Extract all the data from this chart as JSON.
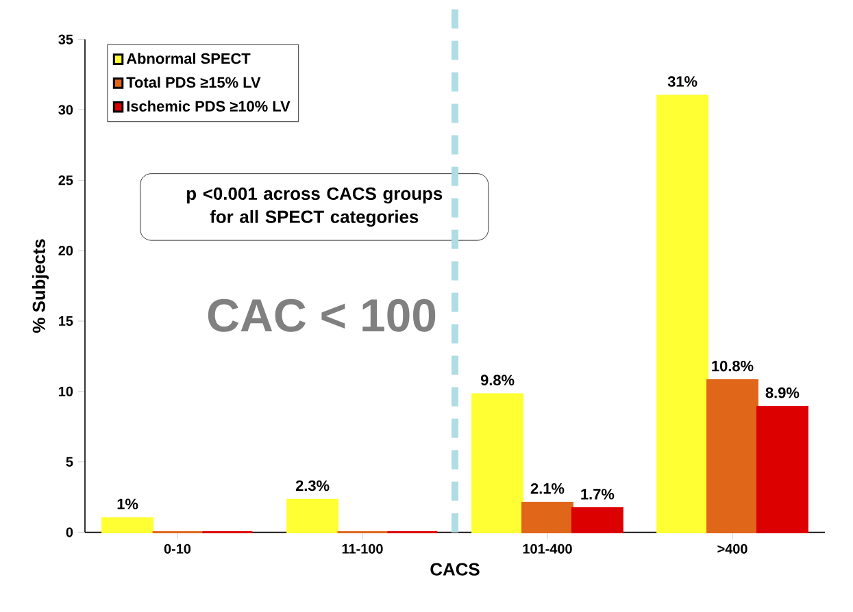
{
  "chart_data": {
    "type": "bar",
    "xlabel": "CACS",
    "ylabel": "% Subjects",
    "categories": [
      "0-10",
      "11-100",
      "101-400",
      ">400"
    ],
    "series": [
      {
        "name": "Abnormal SPECT",
        "color": "#ffff33",
        "values": [
          1,
          2.3,
          9.8,
          31
        ],
        "value_labels": [
          "1%",
          "2.3%",
          "9.8%",
          "31%"
        ]
      },
      {
        "name": "Total PDS ≥15% LV",
        "color": "#e0661a",
        "values": [
          0,
          0,
          2.1,
          10.8
        ],
        "value_labels": [
          null,
          null,
          "2.1%",
          "10.8%"
        ]
      },
      {
        "name": "Ischemic PDS ≥10% LV",
        "color": "#dd0000",
        "values": [
          0,
          0,
          1.7,
          8.9
        ],
        "value_labels": [
          null,
          null,
          "1.7%",
          "8.9%"
        ]
      }
    ],
    "ylim": [
      0,
      35
    ],
    "yticks": [
      0,
      5,
      10,
      15,
      20,
      25,
      30,
      35
    ],
    "legend": "top left",
    "grid": false,
    "annotations": [
      "p <0.001 across CACS groups for all SPECT categories",
      "CAC < 100"
    ]
  }
}
